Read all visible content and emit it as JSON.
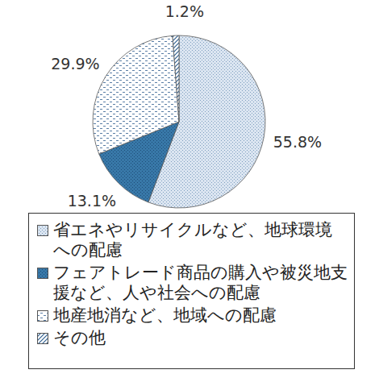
{
  "chart_data": {
    "type": "pie",
    "categories": [
      "省エネやリサイクルなど、地球環境への配慮",
      "フェアトレード商品の購入や被災地支援など、人や社会への配慮",
      "地産地消など、地域への配慮",
      "その他"
    ],
    "values": [
      55.8,
      13.1,
      29.9,
      1.2
    ],
    "value_labels": [
      "55.8%",
      "13.1%",
      "29.9%",
      "1.2%"
    ],
    "colors": [
      "#dbe5f1",
      "#3878a8",
      "#ffffff",
      "#ffffff"
    ],
    "data_labels": true,
    "legend": "bottom"
  }
}
